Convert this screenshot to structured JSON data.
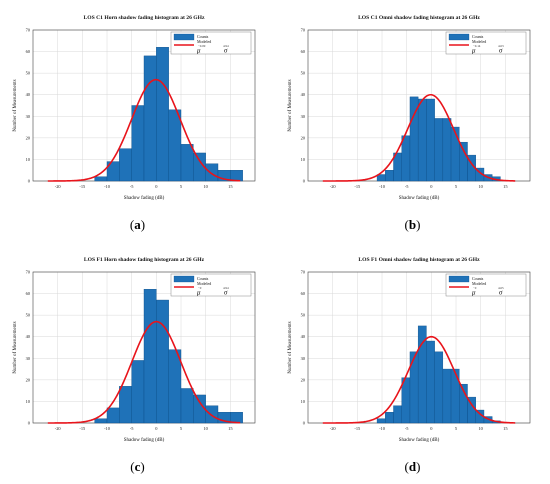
{
  "colors": {
    "bar": "#1f72b8",
    "bar_edge": "#0d4f8a",
    "curve": "#e8141b",
    "axis": "#444444",
    "grid": "#d8d8d8"
  },
  "chart_data": [
    {
      "type": "bar",
      "panel_tag": "a",
      "title": "LOS C1 Horn shadow fading histogram at 26 GHz",
      "xlabel": "Shadow fading (dB)",
      "ylabel": "Number of Measurements",
      "xlim": [
        -25,
        20
      ],
      "ylim": [
        0,
        70
      ],
      "xticks": [
        -20,
        -15,
        -10,
        -5,
        0,
        5,
        10,
        15
      ],
      "yticks": [
        0,
        10,
        20,
        30,
        40,
        50,
        60,
        70
      ],
      "grid": true,
      "legend": {
        "position": "top-right",
        "entries": [
          "Counts",
          "Modeled"
        ],
        "mu_symbol": "μ",
        "sigma_symbol": "σ",
        "mu_value": "−0.09",
        "sigma_value": "4.94"
      },
      "bin_width": 2.5,
      "bin_edges": [
        -12.5,
        -10,
        -7.5,
        -5,
        -2.5,
        0,
        2.5,
        5,
        7.5,
        10,
        12.5,
        15,
        17.5
      ],
      "counts": [
        2,
        9,
        15,
        35,
        58,
        62,
        33,
        17,
        13,
        8,
        5,
        5,
        3
      ],
      "fit": {
        "mu": -0.09,
        "sigma": 4.94,
        "peak": 47
      }
    },
    {
      "type": "bar",
      "panel_tag": "b",
      "title": "LOS C1 Omni shadow fading histogram at 26 GHz",
      "xlabel": "Shadow fading (dB)",
      "ylabel": "Number of Measurements",
      "xlim": [
        -25,
        20
      ],
      "ylim": [
        0,
        70
      ],
      "xticks": [
        -20,
        -15,
        -10,
        -5,
        0,
        5,
        10,
        15
      ],
      "yticks": [
        0,
        10,
        20,
        30,
        40,
        50,
        60,
        70
      ],
      "grid": true,
      "legend": {
        "position": "top-right",
        "entries": [
          "Counts",
          "Modeled"
        ],
        "mu_symbol": "μ",
        "sigma_symbol": "σ",
        "mu_value": "−0.14",
        "sigma_value": "4.63"
      },
      "bin_width": 1.67,
      "bin_edges": [
        -11,
        -9.33,
        -7.67,
        -6,
        -4.33,
        -2.67,
        -1,
        0.67,
        2.33,
        4,
        5.67,
        7.33,
        9,
        10.67,
        12.33,
        14
      ],
      "counts": [
        3,
        5,
        13,
        21,
        39,
        38,
        38,
        29,
        29,
        25,
        18,
        12,
        6,
        3,
        2
      ],
      "fit": {
        "mu": -0.14,
        "sigma": 4.63,
        "peak": 40
      }
    },
    {
      "type": "bar",
      "panel_tag": "c",
      "title": "LOS F1 Horn shadow fading histogram at 26 GHz",
      "xlabel": "Shadow fading (dB)",
      "ylabel": "Number of Measurements",
      "xlim": [
        -25,
        20
      ],
      "ylim": [
        0,
        70
      ],
      "xticks": [
        -20,
        -15,
        -10,
        -5,
        0,
        5,
        10,
        15
      ],
      "yticks": [
        0,
        10,
        20,
        30,
        40,
        50,
        60,
        70
      ],
      "grid": true,
      "legend": {
        "position": "top-right",
        "entries": [
          "Counts",
          "Modeled"
        ],
        "mu_symbol": "μ",
        "sigma_symbol": "σ",
        "mu_value": "−0",
        "sigma_value": "4.94"
      },
      "bin_width": 2.5,
      "bin_edges": [
        -12.5,
        -10,
        -7.5,
        -5,
        -2.5,
        0,
        2.5,
        5,
        7.5,
        10,
        12.5,
        15,
        17.5
      ],
      "counts": [
        2,
        7,
        17,
        29,
        62,
        57,
        34,
        16,
        13,
        8,
        5,
        5,
        3
      ],
      "fit": {
        "mu": 0,
        "sigma": 4.94,
        "peak": 47
      }
    },
    {
      "type": "bar",
      "panel_tag": "d",
      "title": "LOS F1 Omni shadow fading histogram at 26 GHz",
      "xlabel": "Shadow fading (dB)",
      "ylabel": "Number of Measurements",
      "xlim": [
        -25,
        20
      ],
      "ylim": [
        0,
        70
      ],
      "xticks": [
        -20,
        -15,
        -10,
        -5,
        0,
        5,
        10,
        15
      ],
      "yticks": [
        0,
        10,
        20,
        30,
        40,
        50,
        60,
        70
      ],
      "grid": true,
      "legend": {
        "position": "top-right",
        "entries": [
          "Counts",
          "Modeled"
        ],
        "mu_symbol": "μ",
        "sigma_symbol": "σ",
        "mu_value": "−0",
        "sigma_value": "4.65"
      },
      "bin_width": 1.67,
      "bin_edges": [
        -11,
        -9.33,
        -7.67,
        -6,
        -4.33,
        -2.67,
        -1,
        0.67,
        2.33,
        4,
        5.67,
        7.33,
        9,
        10.67,
        12.33,
        14
      ],
      "counts": [
        2,
        5,
        8,
        21,
        33,
        45,
        38,
        33,
        25,
        25,
        18,
        12,
        6,
        3,
        1
      ],
      "fit": {
        "mu": 0,
        "sigma": 4.65,
        "peak": 40
      }
    }
  ]
}
